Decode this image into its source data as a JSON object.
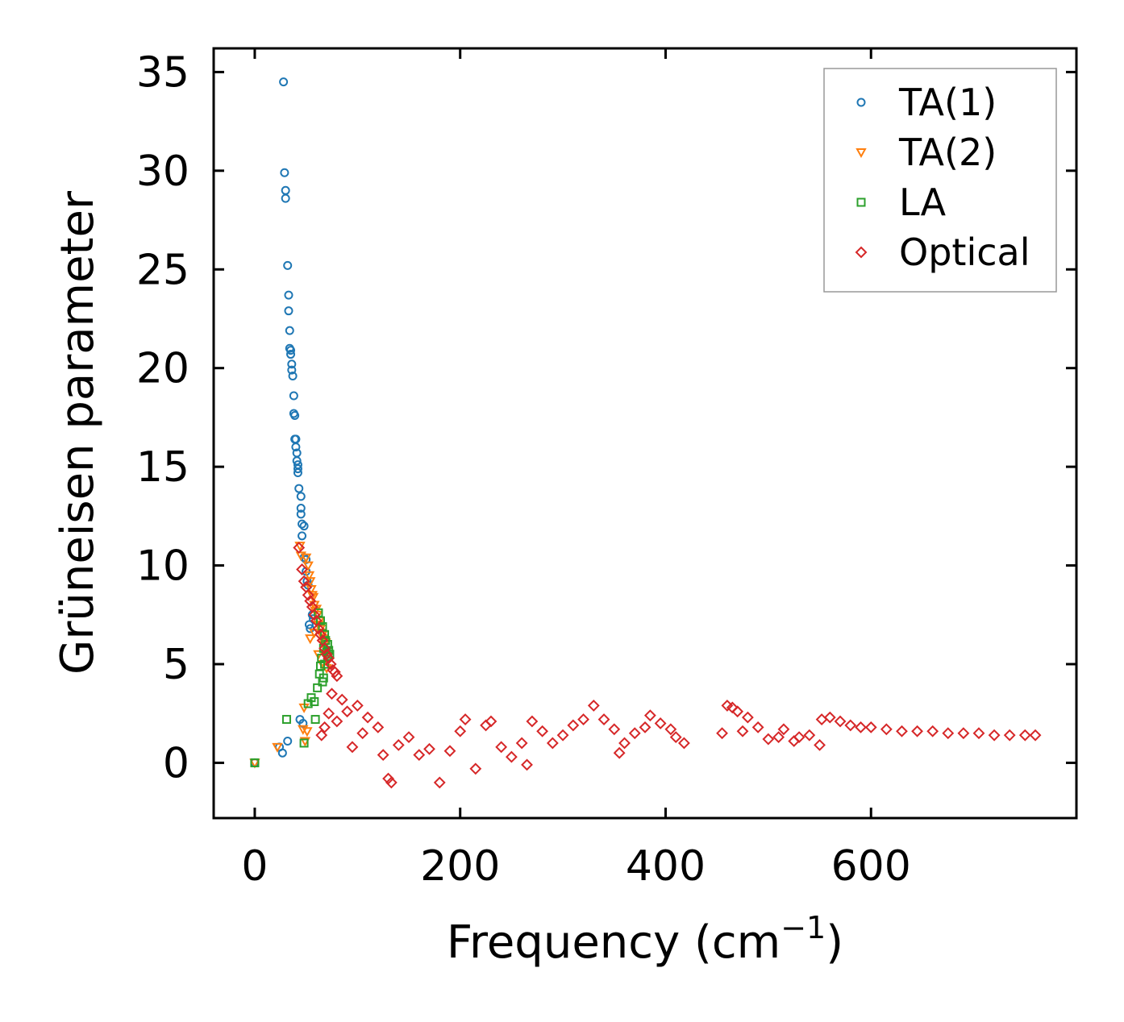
{
  "chart_data": {
    "type": "scatter",
    "title": "",
    "xlabel": "Frequency (cm",
    "xlabel_sup": "−1",
    "xlabel_end": ")",
    "ylabel": "Grüneisen parameter",
    "xlim": [
      -40,
      800
    ],
    "ylim": [
      -2.8,
      36.2
    ],
    "xticks": [
      0,
      200,
      400,
      600
    ],
    "yticks": [
      0,
      5,
      10,
      15,
      20,
      25,
      30,
      35
    ],
    "xtick_labels": [
      "0",
      "200",
      "400",
      "600"
    ],
    "ytick_labels": [
      "0",
      "5",
      "10",
      "15",
      "20",
      "25",
      "30",
      "35"
    ],
    "grid": false,
    "legend_position": "top-right",
    "colors": {
      "TA(1)": "#1f77b4",
      "TA(2)": "#ff7f0e",
      "LA": "#2ca02c",
      "Optical": "#d62728"
    },
    "series": [
      {
        "name": "TA(1)",
        "marker": "circle",
        "points": [
          [
            0,
            0
          ],
          [
            24,
            0.8
          ],
          [
            27,
            0.5
          ],
          [
            28,
            34.5
          ],
          [
            29,
            29.9
          ],
          [
            30,
            29.0
          ],
          [
            30,
            28.6
          ],
          [
            32,
            1.1
          ],
          [
            32,
            25.2
          ],
          [
            33,
            23.7
          ],
          [
            33,
            22.9
          ],
          [
            34,
            21.9
          ],
          [
            34,
            21.0
          ],
          [
            35,
            20.9
          ],
          [
            35,
            20.7
          ],
          [
            36,
            20.2
          ],
          [
            36,
            19.9
          ],
          [
            37,
            19.6
          ],
          [
            38,
            18.6
          ],
          [
            38,
            17.7
          ],
          [
            39,
            17.6
          ],
          [
            39,
            16.4
          ],
          [
            40,
            16.4
          ],
          [
            40,
            16.0
          ],
          [
            41,
            15.7
          ],
          [
            41,
            15.3
          ],
          [
            42,
            15.1
          ],
          [
            42,
            14.9
          ],
          [
            42,
            14.7
          ],
          [
            43,
            13.9
          ],
          [
            44,
            2.2
          ],
          [
            45,
            13.5
          ],
          [
            45,
            12.9
          ],
          [
            45,
            12.6
          ],
          [
            46,
            12.1
          ],
          [
            46,
            11.5
          ],
          [
            47,
            2.0
          ],
          [
            48,
            12.0
          ],
          [
            48,
            10.4
          ],
          [
            50,
            10.3
          ],
          [
            50,
            9.7
          ],
          [
            51,
            9.2
          ],
          [
            52,
            9.0
          ],
          [
            53,
            7.0
          ],
          [
            54,
            6.8
          ],
          [
            56,
            7.5
          ],
          [
            57,
            7.3
          ]
        ]
      },
      {
        "name": "TA(2)",
        "marker": "triangle-down",
        "points": [
          [
            0,
            0
          ],
          [
            22,
            0.8
          ],
          [
            44,
            11.0
          ],
          [
            45,
            10.5
          ],
          [
            47,
            1.7
          ],
          [
            48,
            2.8
          ],
          [
            49,
            1.1
          ],
          [
            50,
            10.4
          ],
          [
            51,
            1.6
          ],
          [
            52,
            10.0
          ],
          [
            53,
            9.5
          ],
          [
            54,
            9.2
          ],
          [
            55,
            8.8
          ],
          [
            56,
            8.5
          ],
          [
            57,
            8.4
          ],
          [
            58,
            8.0
          ],
          [
            59,
            7.7
          ],
          [
            60,
            7.8
          ],
          [
            61,
            7.5
          ],
          [
            62,
            7.0
          ],
          [
            63,
            7.2
          ],
          [
            64,
            6.8
          ],
          [
            65,
            6.6
          ],
          [
            66,
            6.5
          ],
          [
            67,
            6.3
          ],
          [
            68,
            6.0
          ],
          [
            69,
            6.1
          ],
          [
            70,
            5.7
          ],
          [
            54,
            6.3
          ],
          [
            58,
            6.6
          ],
          [
            62,
            5.5
          ],
          [
            66,
            5.0
          ],
          [
            70,
            4.8
          ]
        ]
      },
      {
        "name": "LA",
        "marker": "square",
        "points": [
          [
            0,
            0
          ],
          [
            31,
            2.2
          ],
          [
            48,
            1.0
          ],
          [
            52,
            3.0
          ],
          [
            55,
            3.3
          ],
          [
            58,
            3.1
          ],
          [
            59,
            2.2
          ],
          [
            61,
            3.8
          ],
          [
            62,
            7.6
          ],
          [
            63,
            4.5
          ],
          [
            64,
            4.9
          ],
          [
            64,
            7.2
          ],
          [
            65,
            5.3
          ],
          [
            66,
            4.1
          ],
          [
            66,
            6.9
          ],
          [
            67,
            5.8
          ],
          [
            67,
            4.3
          ],
          [
            68,
            6.5
          ],
          [
            68,
            5.0
          ],
          [
            69,
            6.2
          ],
          [
            70,
            5.6
          ],
          [
            71,
            6.0
          ],
          [
            71,
            5.4
          ],
          [
            72,
            5.7
          ],
          [
            73,
            5.5
          ]
        ]
      },
      {
        "name": "Optical",
        "marker": "diamond",
        "points": [
          [
            43,
            10.9
          ],
          [
            46,
            9.8
          ],
          [
            48,
            9.2
          ],
          [
            50,
            8.9
          ],
          [
            52,
            8.5
          ],
          [
            54,
            8.2
          ],
          [
            56,
            7.9
          ],
          [
            58,
            7.5
          ],
          [
            60,
            7.2
          ],
          [
            62,
            6.8
          ],
          [
            64,
            6.5
          ],
          [
            66,
            6.2
          ],
          [
            68,
            5.8
          ],
          [
            70,
            5.5
          ],
          [
            72,
            5.3
          ],
          [
            74,
            5.0
          ],
          [
            76,
            4.7
          ],
          [
            78,
            4.6
          ],
          [
            80,
            4.4
          ],
          [
            65,
            1.4
          ],
          [
            68,
            1.8
          ],
          [
            72,
            2.5
          ],
          [
            75,
            3.5
          ],
          [
            80,
            2.1
          ],
          [
            85,
            3.2
          ],
          [
            90,
            2.6
          ],
          [
            95,
            0.8
          ],
          [
            100,
            2.9
          ],
          [
            105,
            1.5
          ],
          [
            110,
            2.3
          ],
          [
            120,
            1.8
          ],
          [
            125,
            0.4
          ],
          [
            130,
            -0.8
          ],
          [
            133,
            -1.0
          ],
          [
            140,
            0.9
          ],
          [
            150,
            1.3
          ],
          [
            160,
            0.4
          ],
          [
            170,
            0.7
          ],
          [
            180,
            -1.0
          ],
          [
            190,
            0.6
          ],
          [
            200,
            1.6
          ],
          [
            205,
            2.2
          ],
          [
            215,
            -0.3
          ],
          [
            225,
            1.9
          ],
          [
            230,
            2.1
          ],
          [
            240,
            0.8
          ],
          [
            250,
            0.3
          ],
          [
            260,
            1.0
          ],
          [
            265,
            -0.1
          ],
          [
            270,
            2.1
          ],
          [
            280,
            1.6
          ],
          [
            290,
            1.0
          ],
          [
            300,
            1.4
          ],
          [
            310,
            1.9
          ],
          [
            320,
            2.2
          ],
          [
            330,
            2.9
          ],
          [
            340,
            2.2
          ],
          [
            350,
            1.7
          ],
          [
            355,
            0.5
          ],
          [
            360,
            1.0
          ],
          [
            370,
            1.5
          ],
          [
            380,
            1.8
          ],
          [
            385,
            2.4
          ],
          [
            395,
            2.0
          ],
          [
            405,
            1.7
          ],
          [
            410,
            1.3
          ],
          [
            418,
            1.0
          ],
          [
            455,
            1.5
          ],
          [
            460,
            2.9
          ],
          [
            465,
            2.8
          ],
          [
            470,
            2.6
          ],
          [
            475,
            1.6
          ],
          [
            480,
            2.3
          ],
          [
            490,
            1.8
          ],
          [
            500,
            1.2
          ],
          [
            510,
            1.3
          ],
          [
            515,
            1.7
          ],
          [
            525,
            1.1
          ],
          [
            530,
            1.3
          ],
          [
            540,
            1.4
          ],
          [
            550,
            0.9
          ],
          [
            552,
            2.2
          ],
          [
            560,
            2.3
          ],
          [
            570,
            2.1
          ],
          [
            580,
            1.9
          ],
          [
            590,
            1.8
          ],
          [
            600,
            1.8
          ],
          [
            615,
            1.7
          ],
          [
            630,
            1.6
          ],
          [
            645,
            1.6
          ],
          [
            660,
            1.6
          ],
          [
            675,
            1.5
          ],
          [
            690,
            1.5
          ],
          [
            705,
            1.5
          ],
          [
            720,
            1.4
          ],
          [
            735,
            1.4
          ],
          [
            750,
            1.4
          ],
          [
            760,
            1.4
          ]
        ]
      }
    ]
  }
}
